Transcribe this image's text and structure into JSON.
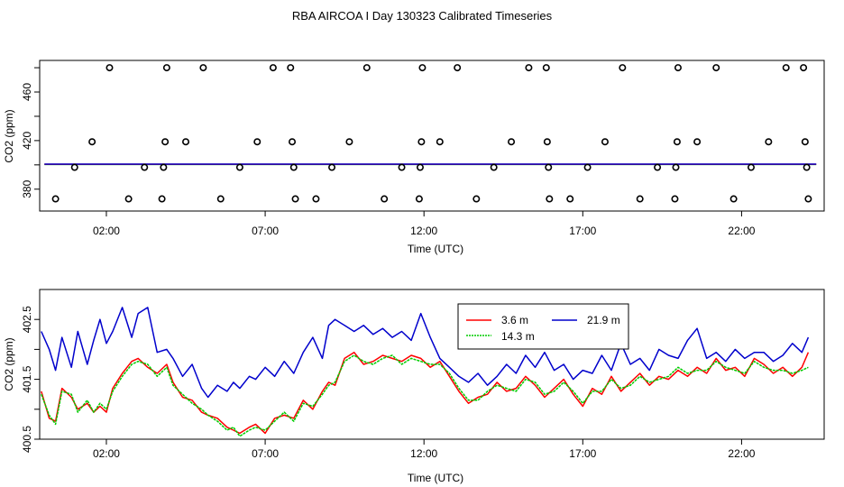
{
  "title": "RBA AIRCOA I  Day 130323  Calibrated Timeseries",
  "chart_data": [
    {
      "type": "scatter",
      "xlabel": "Time (UTC)",
      "ylabel": "CO2 (ppm)",
      "xticks": [
        {
          "value": 2,
          "label": "02:00"
        },
        {
          "value": 7,
          "label": "07:00"
        },
        {
          "value": 12,
          "label": "12:00"
        },
        {
          "value": 17,
          "label": "17:00"
        },
        {
          "value": 22,
          "label": "22:00"
        }
      ],
      "yticks": [
        360,
        380,
        400,
        420,
        440,
        460,
        480
      ],
      "ytick_labels": [
        {
          "value": 380,
          "label": "380"
        },
        {
          "value": 420,
          "label": "420"
        },
        {
          "value": 460,
          "label": "460"
        }
      ],
      "xlim": [
        -0.1,
        24.6
      ],
      "ylim": [
        362,
        486
      ],
      "grid": false,
      "flat_line_value": 400.5,
      "series": [
        {
          "color": "#00cc00",
          "y": 400.3
        },
        {
          "color": "#ff0000",
          "y": 400.5
        },
        {
          "color": "#0000cc",
          "y": 400.6
        }
      ],
      "points": [
        {
          "x": 0.4,
          "y": 372
        },
        {
          "x": 1.0,
          "y": 398
        },
        {
          "x": 1.55,
          "y": 419
        },
        {
          "x": 2.1,
          "y": 480
        },
        {
          "x": 2.7,
          "y": 372
        },
        {
          "x": 3.2,
          "y": 398
        },
        {
          "x": 3.75,
          "y": 372
        },
        {
          "x": 3.8,
          "y": 398
        },
        {
          "x": 3.85,
          "y": 419
        },
        {
          "x": 3.9,
          "y": 480
        },
        {
          "x": 4.5,
          "y": 419
        },
        {
          "x": 5.05,
          "y": 480
        },
        {
          "x": 5.6,
          "y": 372
        },
        {
          "x": 6.2,
          "y": 398
        },
        {
          "x": 6.75,
          "y": 419
        },
        {
          "x": 7.25,
          "y": 480
        },
        {
          "x": 7.8,
          "y": 480
        },
        {
          "x": 7.85,
          "y": 419
        },
        {
          "x": 7.9,
          "y": 398
        },
        {
          "x": 7.95,
          "y": 372
        },
        {
          "x": 8.6,
          "y": 372
        },
        {
          "x": 9.1,
          "y": 398
        },
        {
          "x": 9.65,
          "y": 419
        },
        {
          "x": 10.2,
          "y": 480
        },
        {
          "x": 10.75,
          "y": 372
        },
        {
          "x": 11.3,
          "y": 398
        },
        {
          "x": 11.85,
          "y": 372
        },
        {
          "x": 11.88,
          "y": 398
        },
        {
          "x": 11.92,
          "y": 419
        },
        {
          "x": 11.95,
          "y": 480
        },
        {
          "x": 12.5,
          "y": 419
        },
        {
          "x": 13.05,
          "y": 480
        },
        {
          "x": 13.65,
          "y": 372
        },
        {
          "x": 14.2,
          "y": 398
        },
        {
          "x": 14.75,
          "y": 419
        },
        {
          "x": 15.3,
          "y": 480
        },
        {
          "x": 15.85,
          "y": 480
        },
        {
          "x": 15.88,
          "y": 419
        },
        {
          "x": 15.92,
          "y": 398
        },
        {
          "x": 15.95,
          "y": 372
        },
        {
          "x": 16.6,
          "y": 372
        },
        {
          "x": 17.15,
          "y": 398
        },
        {
          "x": 17.7,
          "y": 419
        },
        {
          "x": 18.25,
          "y": 480
        },
        {
          "x": 18.8,
          "y": 372
        },
        {
          "x": 19.35,
          "y": 398
        },
        {
          "x": 19.9,
          "y": 372
        },
        {
          "x": 19.93,
          "y": 398
        },
        {
          "x": 19.97,
          "y": 419
        },
        {
          "x": 20.0,
          "y": 480
        },
        {
          "x": 20.6,
          "y": 419
        },
        {
          "x": 21.2,
          "y": 480
        },
        {
          "x": 21.75,
          "y": 372
        },
        {
          "x": 22.3,
          "y": 398
        },
        {
          "x": 22.85,
          "y": 419
        },
        {
          "x": 23.4,
          "y": 480
        },
        {
          "x": 23.95,
          "y": 480
        },
        {
          "x": 24.0,
          "y": 419
        },
        {
          "x": 24.05,
          "y": 398
        },
        {
          "x": 24.1,
          "y": 372
        }
      ]
    },
    {
      "type": "line",
      "xlabel": "Time (UTC)",
      "ylabel": "CO2 (ppm)",
      "xticks": [
        {
          "value": 2,
          "label": "02:00"
        },
        {
          "value": 7,
          "label": "07:00"
        },
        {
          "value": 12,
          "label": "12:00"
        },
        {
          "value": 17,
          "label": "17:00"
        },
        {
          "value": 22,
          "label": "22:00"
        }
      ],
      "yticks": [
        {
          "value": 400.5,
          "label": "400.5"
        },
        {
          "value": 401.0,
          "label": ""
        },
        {
          "value": 401.5,
          "label": "401.5"
        },
        {
          "value": 402.0,
          "label": ""
        },
        {
          "value": 402.5,
          "label": "402.5"
        }
      ],
      "xlim": [
        -0.1,
        24.6
      ],
      "ylim": [
        400.5,
        403.0
      ],
      "grid": false,
      "legend_position": "top-center",
      "series": [
        {
          "name": "3.6 m",
          "color": "#ff0000",
          "x": [
            -0.05,
            0.2,
            0.4,
            0.6,
            0.9,
            1.1,
            1.4,
            1.6,
            1.8,
            2.0,
            2.2,
            2.5,
            2.8,
            3.0,
            3.3,
            3.6,
            3.9,
            4.1,
            4.4,
            4.7,
            5.0,
            5.2,
            5.5,
            5.8,
            6.0,
            6.2,
            6.5,
            6.7,
            7.0,
            7.3,
            7.6,
            7.9,
            8.2,
            8.5,
            8.8,
            9.0,
            9.2,
            9.5,
            9.8,
            10.1,
            10.4,
            10.7,
            11.0,
            11.3,
            11.6,
            11.9,
            12.2,
            12.5,
            12.8,
            13.1,
            13.4,
            13.7,
            14.0,
            14.3,
            14.6,
            14.9,
            15.2,
            15.5,
            15.8,
            16.1,
            16.4,
            16.7,
            17.0,
            17.3,
            17.6,
            17.9,
            18.2,
            18.5,
            18.8,
            19.1,
            19.4,
            19.7,
            20.0,
            20.3,
            20.6,
            20.9,
            21.2,
            21.5,
            21.8,
            22.1,
            22.4,
            22.7,
            23.0,
            23.3,
            23.6,
            23.9,
            24.1
          ],
          "y": [
            401.3,
            400.85,
            400.8,
            401.35,
            401.2,
            401.0,
            401.1,
            400.95,
            401.05,
            400.95,
            401.35,
            401.6,
            401.8,
            401.85,
            401.7,
            401.6,
            401.75,
            401.45,
            401.2,
            401.15,
            400.95,
            400.9,
            400.85,
            400.7,
            400.65,
            400.6,
            400.7,
            400.75,
            400.6,
            400.85,
            400.9,
            400.85,
            401.15,
            401.0,
            401.3,
            401.45,
            401.4,
            401.85,
            401.95,
            401.75,
            401.8,
            401.9,
            401.85,
            401.8,
            401.9,
            401.85,
            401.7,
            401.8,
            401.55,
            401.3,
            401.1,
            401.2,
            401.25,
            401.45,
            401.3,
            401.35,
            401.55,
            401.4,
            401.2,
            401.35,
            401.5,
            401.25,
            401.05,
            401.35,
            401.25,
            401.55,
            401.3,
            401.45,
            401.6,
            401.4,
            401.55,
            401.5,
            401.65,
            401.55,
            401.7,
            401.6,
            401.85,
            401.65,
            401.7,
            401.55,
            401.85,
            401.75,
            401.6,
            401.7,
            401.55,
            401.7,
            401.95
          ]
        },
        {
          "name": "14.3 m",
          "color": "#00cc00",
          "x": [
            -0.05,
            0.2,
            0.4,
            0.6,
            0.9,
            1.1,
            1.4,
            1.6,
            1.8,
            2.0,
            2.2,
            2.5,
            2.8,
            3.0,
            3.3,
            3.6,
            3.9,
            4.1,
            4.4,
            4.7,
            5.0,
            5.2,
            5.5,
            5.8,
            6.0,
            6.2,
            6.5,
            6.7,
            7.0,
            7.3,
            7.6,
            7.9,
            8.2,
            8.5,
            8.8,
            9.0,
            9.2,
            9.5,
            9.8,
            10.1,
            10.4,
            10.7,
            11.0,
            11.3,
            11.6,
            11.9,
            12.2,
            12.5,
            12.8,
            13.1,
            13.4,
            13.7,
            14.0,
            14.3,
            14.6,
            14.9,
            15.2,
            15.5,
            15.8,
            16.1,
            16.4,
            16.7,
            17.0,
            17.3,
            17.6,
            17.9,
            18.2,
            18.5,
            18.8,
            19.1,
            19.4,
            19.7,
            20.0,
            20.3,
            20.6,
            20.9,
            21.2,
            21.5,
            21.8,
            22.1,
            22.4,
            22.7,
            23.0,
            23.3,
            23.6,
            23.9,
            24.1
          ],
          "y": [
            401.25,
            400.9,
            400.75,
            401.3,
            401.25,
            400.95,
            401.15,
            400.95,
            401.1,
            401.0,
            401.3,
            401.55,
            401.75,
            401.8,
            401.75,
            401.55,
            401.7,
            401.4,
            401.25,
            401.1,
            401.0,
            400.9,
            400.8,
            400.65,
            400.7,
            400.55,
            400.65,
            400.7,
            400.65,
            400.8,
            400.95,
            400.8,
            401.1,
            401.05,
            401.25,
            401.4,
            401.45,
            401.8,
            401.9,
            401.8,
            401.75,
            401.85,
            401.9,
            401.75,
            401.85,
            401.8,
            401.75,
            401.75,
            401.6,
            401.35,
            401.15,
            401.15,
            401.3,
            401.4,
            401.35,
            401.3,
            401.5,
            401.45,
            401.25,
            401.3,
            401.45,
            401.3,
            401.1,
            401.3,
            401.3,
            401.5,
            401.35,
            401.4,
            401.55,
            401.45,
            401.5,
            401.55,
            401.7,
            401.6,
            401.65,
            401.65,
            401.8,
            401.7,
            401.65,
            401.6,
            401.8,
            401.7,
            401.65,
            401.65,
            401.6,
            401.65,
            401.7
          ]
        },
        {
          "name": "21.9 m",
          "color": "#0000cc",
          "x": [
            -0.05,
            0.2,
            0.4,
            0.6,
            0.9,
            1.1,
            1.4,
            1.6,
            1.8,
            2.0,
            2.2,
            2.5,
            2.8,
            3.0,
            3.3,
            3.6,
            3.9,
            4.1,
            4.4,
            4.7,
            5.0,
            5.2,
            5.5,
            5.8,
            6.0,
            6.2,
            6.5,
            6.7,
            7.0,
            7.3,
            7.6,
            7.9,
            8.2,
            8.5,
            8.8,
            9.0,
            9.2,
            9.5,
            9.8,
            10.1,
            10.4,
            10.7,
            11.0,
            11.3,
            11.6,
            11.9,
            12.2,
            12.5,
            12.8,
            13.1,
            13.4,
            13.7,
            14.0,
            14.3,
            14.6,
            14.9,
            15.2,
            15.5,
            15.8,
            16.1,
            16.4,
            16.7,
            17.0,
            17.3,
            17.6,
            17.9,
            18.2,
            18.5,
            18.8,
            19.1,
            19.4,
            19.7,
            20.0,
            20.3,
            20.6,
            20.9,
            21.2,
            21.5,
            21.8,
            22.1,
            22.4,
            22.7,
            23.0,
            23.3,
            23.6,
            23.9,
            24.1
          ],
          "y": [
            402.3,
            402.0,
            401.65,
            402.2,
            401.7,
            402.3,
            401.75,
            402.15,
            402.5,
            402.1,
            402.3,
            402.7,
            402.2,
            402.6,
            402.7,
            401.95,
            402.0,
            401.85,
            401.55,
            401.75,
            401.35,
            401.2,
            401.4,
            401.3,
            401.45,
            401.35,
            401.55,
            401.5,
            401.7,
            401.55,
            401.8,
            401.6,
            401.95,
            402.2,
            401.85,
            402.4,
            402.5,
            402.4,
            402.3,
            402.4,
            402.25,
            402.35,
            402.2,
            402.3,
            402.15,
            402.6,
            402.2,
            401.85,
            401.7,
            401.55,
            401.45,
            401.6,
            401.4,
            401.55,
            401.75,
            401.6,
            401.9,
            401.7,
            401.95,
            401.65,
            401.75,
            401.5,
            401.65,
            401.6,
            401.9,
            401.65,
            402.1,
            401.75,
            401.85,
            401.65,
            402.0,
            401.9,
            401.85,
            402.15,
            402.35,
            401.85,
            401.95,
            401.8,
            402.0,
            401.85,
            401.95,
            401.95,
            401.8,
            401.9,
            402.1,
            401.95,
            402.2
          ]
        }
      ]
    }
  ]
}
